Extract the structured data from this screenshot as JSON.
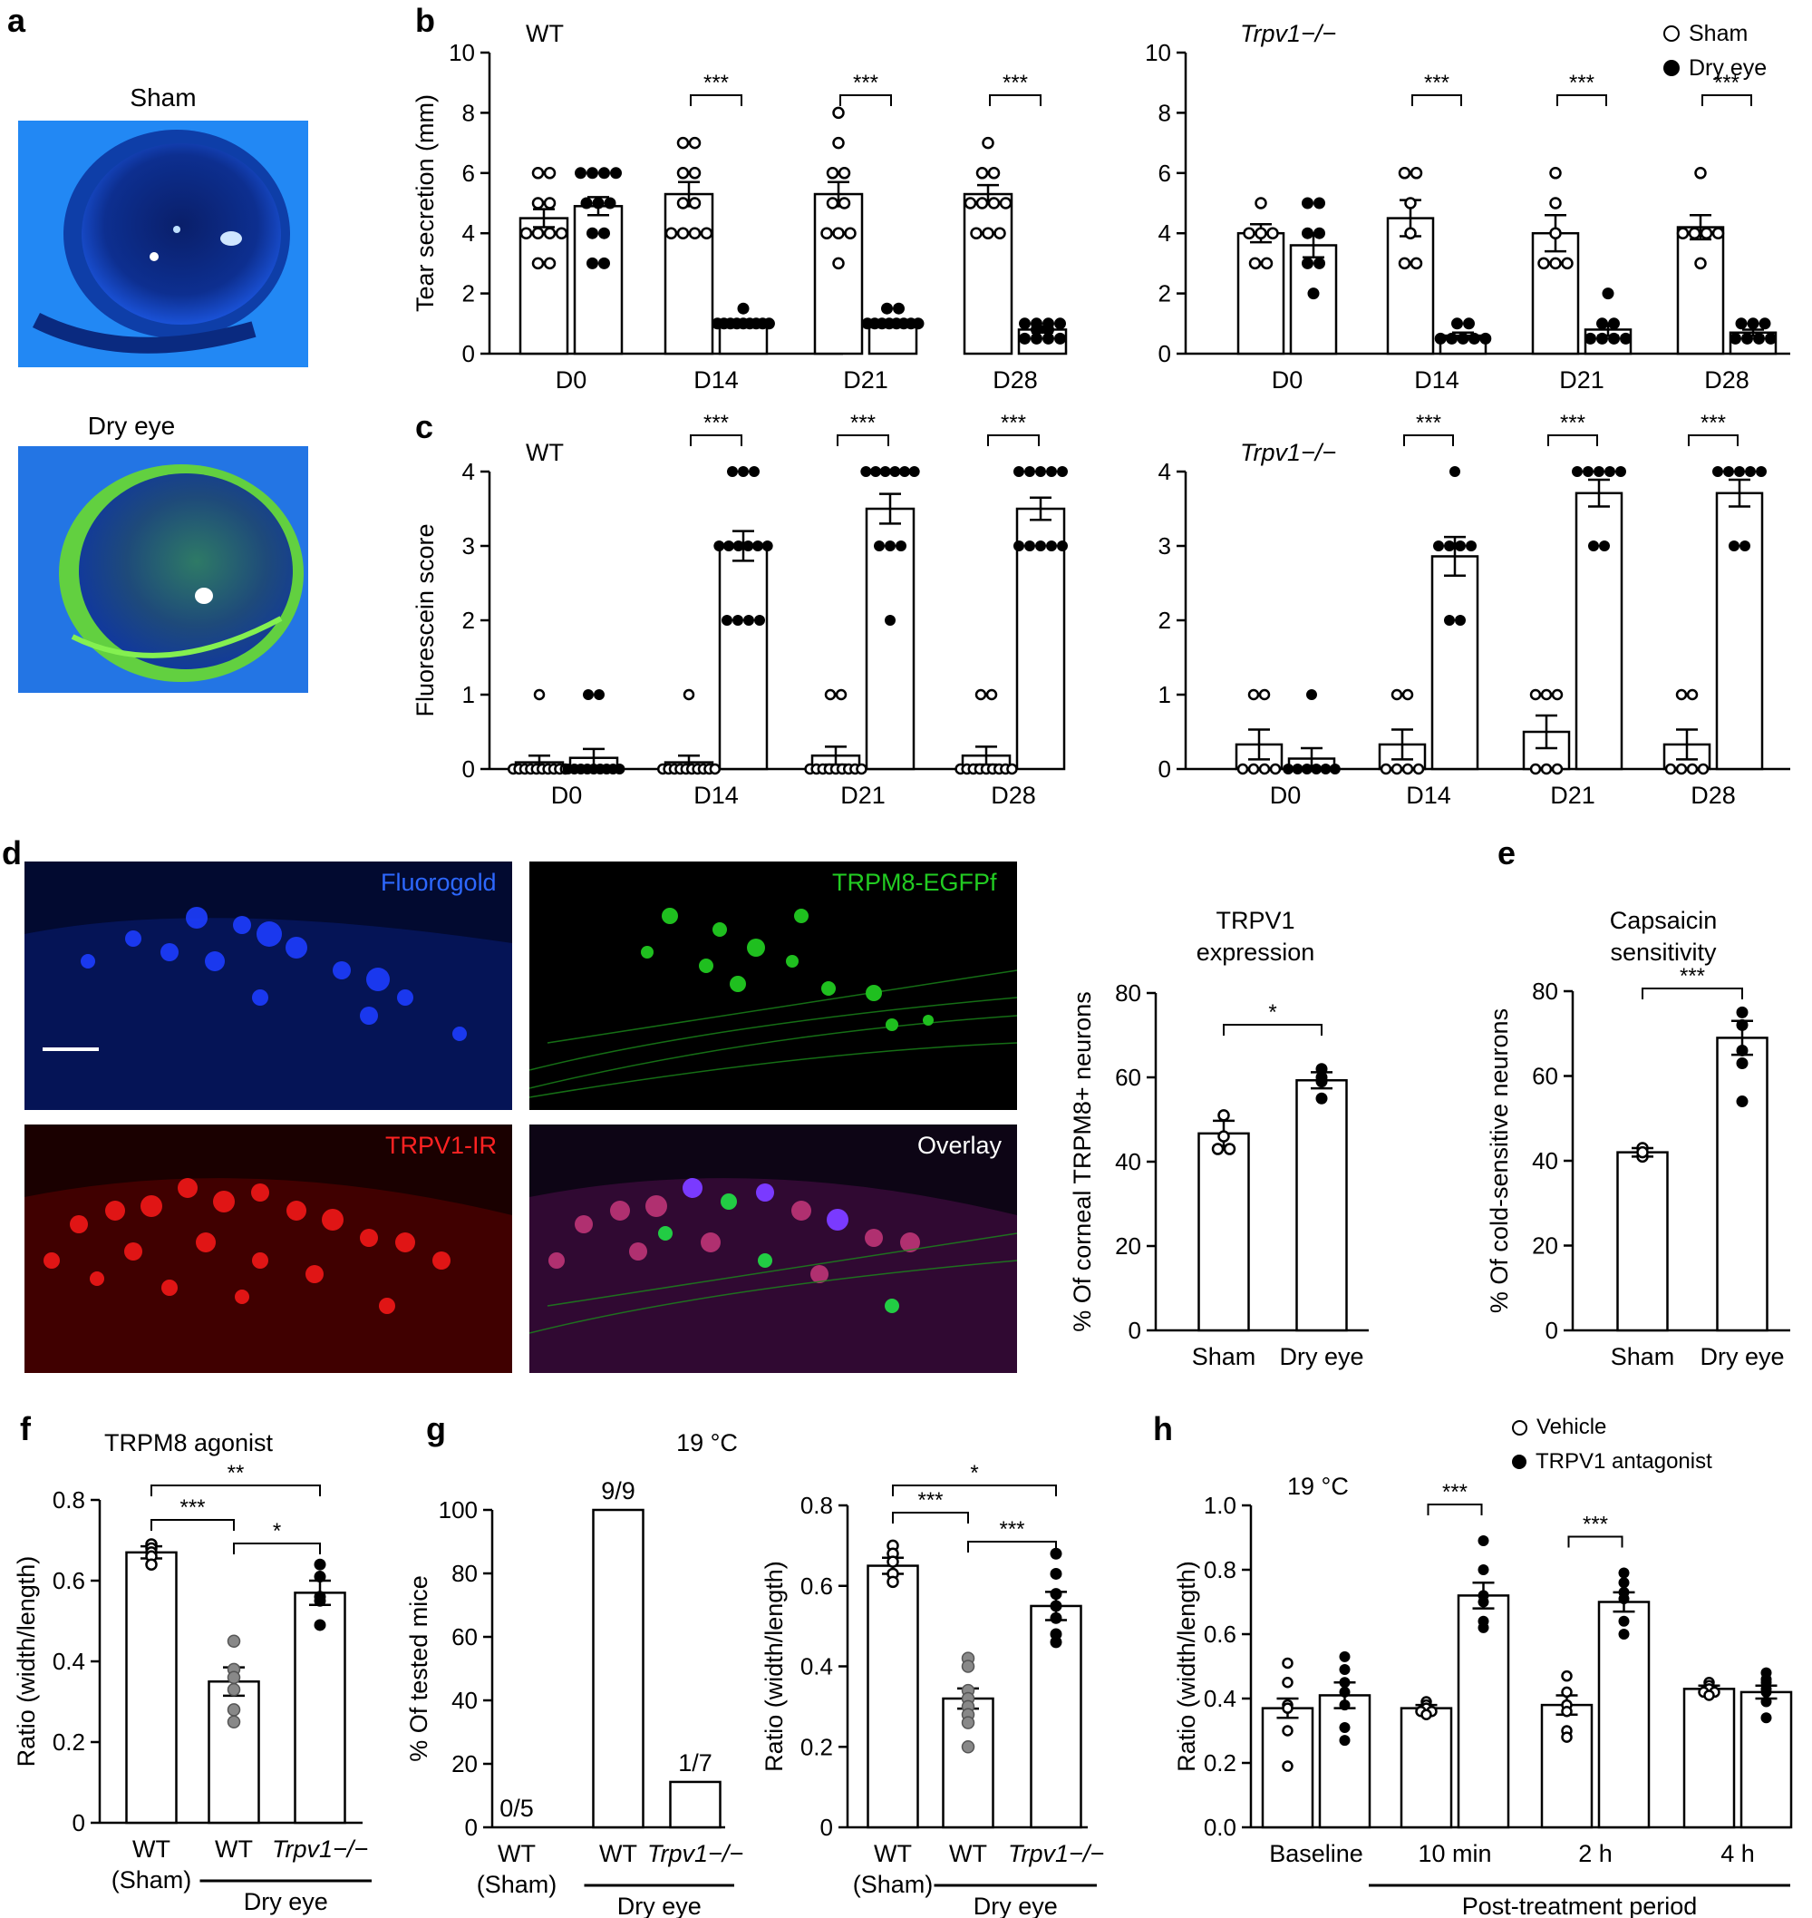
{
  "panel_letters": {
    "a": "a",
    "b": "b",
    "c": "c",
    "d": "d",
    "e": "e",
    "f": "f",
    "g": "g",
    "h": "h"
  },
  "panel_a": {
    "top_label": "Sham",
    "bottom_label": "Dry eye"
  },
  "panel_d": {
    "fluorogold": "Fluorogold",
    "trpm8": "TRPM8-EGFPf",
    "trpv1": "TRPV1-IR",
    "overlay": "Overlay"
  },
  "legend_bc": {
    "sham": "Sham",
    "dry": "Dry eye"
  },
  "legend_h": {
    "vehicle": "Vehicle",
    "antagonist": "TRPV1 antagonist"
  },
  "colors": {
    "sham_marker": "#ffffff",
    "dry_marker": "#000000",
    "wt_dry_marker": "#888888",
    "fluorogold": "#2255ff",
    "egfp": "#22cc22",
    "trpv1": "#ee1111",
    "overlay": "#ffffff"
  },
  "chart_data": [
    {
      "id": "b_wt",
      "type": "bar",
      "title": "WT",
      "ylabel": "Tear secretion (mm)",
      "ylim": [
        0,
        10
      ],
      "yticks": [
        0,
        2,
        4,
        6,
        8,
        10
      ],
      "categories": [
        "D0",
        "D14",
        "D21",
        "D28"
      ],
      "series": [
        {
          "name": "Sham",
          "values": [
            4.5,
            5.3,
            5.3,
            5.3
          ],
          "sem": [
            0.3,
            0.4,
            0.4,
            0.3
          ],
          "points": [
            [
              6,
              6,
              5,
              5,
              4,
              4,
              4,
              4,
              3,
              3
            ],
            [
              7,
              7,
              6,
              6,
              5,
              5,
              4,
              4,
              4,
              4
            ],
            [
              8,
              7,
              6,
              6,
              5,
              5,
              4,
              4,
              4,
              3
            ],
            [
              7,
              6,
              6,
              5,
              5,
              5,
              5,
              4,
              4,
              4
            ]
          ]
        },
        {
          "name": "Dry eye",
          "values": [
            4.9,
            1.0,
            1.0,
            0.8
          ],
          "sem": [
            0.3,
            0.1,
            0.1,
            0.1
          ],
          "points": [
            [
              6,
              6,
              6,
              6,
              5,
              5,
              5,
              4,
              4,
              3,
              3
            ],
            [
              1.5,
              1,
              1,
              1,
              1,
              1,
              1,
              1,
              1,
              1
            ],
            [
              1.5,
              1.5,
              1,
              1,
              1,
              1,
              1,
              1,
              1,
              1
            ],
            [
              1,
              1,
              1,
              1,
              0.8,
              0.8,
              0.5,
              0.5,
              0.5,
              0.5
            ]
          ]
        }
      ],
      "sig": [
        "",
        "***",
        "***",
        "***"
      ]
    },
    {
      "id": "b_ko",
      "type": "bar",
      "title": "Trpv1−/−",
      "ylabel": "",
      "ylim": [
        0,
        10
      ],
      "yticks": [
        0,
        2,
        4,
        6,
        8,
        10
      ],
      "categories": [
        "D0",
        "D14",
        "D21",
        "D28"
      ],
      "series": [
        {
          "name": "Sham",
          "values": [
            4.0,
            4.5,
            4.0,
            4.2
          ],
          "sem": [
            0.3,
            0.6,
            0.6,
            0.4
          ],
          "points": [
            [
              5,
              4,
              4,
              4,
              3,
              3
            ],
            [
              6,
              6,
              5,
              4,
              3,
              3
            ],
            [
              6,
              5,
              4,
              3,
              3,
              3
            ],
            [
              6,
              4,
              4,
              4,
              4,
              3
            ]
          ]
        },
        {
          "name": "Dry eye",
          "values": [
            3.6,
            0.6,
            0.8,
            0.7
          ],
          "sem": [
            0.4,
            0.1,
            0.2,
            0.1
          ],
          "points": [
            [
              5,
              5,
              4,
              4,
              3,
              3,
              2
            ],
            [
              1,
              1,
              0.5,
              0.5,
              0.5,
              0.5,
              0.5
            ],
            [
              2,
              1,
              1,
              0.5,
              0.5,
              0.5,
              0.5
            ],
            [
              1,
              1,
              1,
              0.5,
              0.5,
              0.5,
              0.5
            ]
          ]
        }
      ],
      "sig": [
        "",
        "***",
        "***",
        "***"
      ]
    },
    {
      "id": "c_wt",
      "type": "bar",
      "title": "WT",
      "ylabel": "Fluorescein score",
      "ylim": [
        0,
        4
      ],
      "yticks": [
        0,
        1,
        2,
        3,
        4
      ],
      "categories": [
        "D0",
        "D14",
        "D21",
        "D28"
      ],
      "series": [
        {
          "name": "Sham",
          "values": [
            0.09,
            0.09,
            0.18,
            0.18
          ],
          "sem": [
            0.09,
            0.09,
            0.12,
            0.12
          ],
          "points": [
            [
              1,
              0,
              0,
              0,
              0,
              0,
              0,
              0,
              0,
              0,
              0
            ],
            [
              1,
              0,
              0,
              0,
              0,
              0,
              0,
              0,
              0,
              0,
              0
            ],
            [
              1,
              1,
              0,
              0,
              0,
              0,
              0,
              0,
              0,
              0,
              0
            ],
            [
              1,
              1,
              0,
              0,
              0,
              0,
              0,
              0,
              0,
              0,
              0
            ]
          ]
        },
        {
          "name": "Dry eye",
          "values": [
            0.15,
            3.0,
            3.5,
            3.5
          ],
          "sem": [
            0.12,
            0.2,
            0.2,
            0.15
          ],
          "points": [
            [
              1,
              1,
              0,
              0,
              0,
              0,
              0,
              0,
              0,
              0,
              0
            ],
            [
              4,
              4,
              4,
              3,
              3,
              3,
              3,
              3,
              3,
              2,
              2,
              2,
              2
            ],
            [
              4,
              4,
              4,
              4,
              4,
              4,
              3,
              3,
              3,
              2
            ],
            [
              4,
              4,
              4,
              4,
              4,
              3,
              3,
              3,
              3,
              3
            ]
          ]
        }
      ],
      "sig": [
        "",
        "***",
        "***",
        "***"
      ]
    },
    {
      "id": "c_ko",
      "type": "bar",
      "title": "Trpv1−/−",
      "ylabel": "",
      "ylim": [
        0,
        4
      ],
      "yticks": [
        0,
        1,
        2,
        3,
        4
      ],
      "categories": [
        "D0",
        "D14",
        "D21",
        "D28"
      ],
      "series": [
        {
          "name": "Sham",
          "values": [
            0.33,
            0.33,
            0.5,
            0.33
          ],
          "sem": [
            0.2,
            0.2,
            0.22,
            0.2
          ],
          "points": [
            [
              1,
              1,
              0,
              0,
              0,
              0
            ],
            [
              1,
              1,
              0,
              0,
              0,
              0
            ],
            [
              1,
              1,
              1,
              0,
              0,
              0
            ],
            [
              1,
              1,
              0,
              0,
              0,
              0
            ]
          ]
        },
        {
          "name": "Dry eye",
          "values": [
            0.14,
            2.86,
            3.71,
            3.71
          ],
          "sem": [
            0.14,
            0.26,
            0.18,
            0.18
          ],
          "points": [
            [
              1,
              0,
              0,
              0,
              0,
              0,
              0
            ],
            [
              4,
              3,
              3,
              3,
              3,
              2,
              2
            ],
            [
              4,
              4,
              4,
              4,
              4,
              3,
              3
            ],
            [
              4,
              4,
              4,
              4,
              4,
              3,
              3
            ]
          ]
        }
      ],
      "sig": [
        "",
        "***",
        "***",
        "***"
      ]
    },
    {
      "id": "d_chart",
      "type": "bar",
      "title": "TRPV1\nexpression",
      "ylabel": "% Of corneal TRPM8+ neurons",
      "ylim": [
        0,
        80
      ],
      "yticks": [
        0,
        20,
        40,
        60,
        80
      ],
      "categories": [
        "Sham",
        "Dry eye"
      ],
      "values": [
        46.7,
        59.3
      ],
      "sem": [
        3.0,
        1.9
      ],
      "points": [
        [
          51,
          46,
          43,
          43
        ],
        [
          62,
          60,
          59,
          55
        ]
      ],
      "sig_pairs": [
        [
          0,
          1,
          "*"
        ]
      ]
    },
    {
      "id": "e_chart",
      "type": "bar",
      "title": "Capsaicin\nsensitivity",
      "ylabel": "% Of cold-sensitive neurons",
      "ylim": [
        0,
        80
      ],
      "yticks": [
        0,
        20,
        40,
        60,
        80
      ],
      "categories": [
        "Sham",
        "Dry eye"
      ],
      "values": [
        42,
        69
      ],
      "sem": [
        1.0,
        4.0
      ],
      "points": [
        [
          43,
          41,
          42
        ],
        [
          75,
          72,
          66,
          63,
          54
        ]
      ],
      "sig_pairs": [
        [
          0,
          1,
          "***"
        ]
      ]
    },
    {
      "id": "f_chart",
      "type": "bar",
      "title": "TRPM8 agonist",
      "ylabel": "Ratio (width/length)",
      "ylim": [
        0,
        0.8
      ],
      "yticks": [
        0,
        0.2,
        0.4,
        0.6,
        0.8
      ],
      "categories": [
        "WT\n(Sham)",
        "WT",
        "Trpv1−/−"
      ],
      "group_label": "Dry eye",
      "values": [
        0.67,
        0.35,
        0.57
      ],
      "sem": [
        0.015,
        0.035,
        0.03
      ],
      "points": [
        [
          0.69,
          0.68,
          0.67,
          0.66,
          0.64
        ],
        [
          0.45,
          0.38,
          0.36,
          0.33,
          0.28,
          0.25
        ],
        [
          0.64,
          0.61,
          0.56,
          0.55,
          0.49
        ]
      ],
      "sig_pairs": [
        [
          0,
          1,
          "***"
        ],
        [
          1,
          2,
          "*"
        ],
        [
          0,
          2,
          "**"
        ]
      ]
    },
    {
      "id": "g1_chart",
      "type": "bar",
      "title": "19 °C",
      "ylabel": "% Of tested mice",
      "ylim": [
        0,
        100
      ],
      "yticks": [
        0,
        20,
        40,
        60,
        80,
        100
      ],
      "categories": [
        "WT\n(Sham)",
        "WT",
        "Trpv1−/−"
      ],
      "group_label": "Dry eye",
      "values": [
        0,
        100,
        14.3
      ],
      "data_labels": [
        "0/5",
        "9/9",
        "1/7"
      ]
    },
    {
      "id": "g2_chart",
      "type": "bar",
      "title": "",
      "ylabel": "Ratio (width/length)",
      "ylim": [
        0,
        0.8
      ],
      "yticks": [
        0,
        0.2,
        0.4,
        0.6,
        0.8
      ],
      "categories": [
        "WT\n(Sham)",
        "WT",
        "Trpv1−/−"
      ],
      "group_label": "Dry eye",
      "values": [
        0.65,
        0.32,
        0.55
      ],
      "sem": [
        0.02,
        0.025,
        0.035
      ],
      "points": [
        [
          0.7,
          0.68,
          0.66,
          0.63,
          0.61
        ],
        [
          0.42,
          0.4,
          0.34,
          0.32,
          0.3,
          0.28,
          0.26,
          0.2
        ],
        [
          0.68,
          0.63,
          0.58,
          0.55,
          0.52,
          0.48,
          0.46
        ]
      ],
      "sig_pairs": [
        [
          0,
          1,
          "***"
        ],
        [
          1,
          2,
          "***"
        ],
        [
          0,
          2,
          "*"
        ]
      ]
    },
    {
      "id": "h_chart",
      "type": "bar",
      "title": "19 °C",
      "ylabel": "Ratio (width/length)",
      "ylim": [
        0,
        1.0
      ],
      "yticks": [
        0,
        0.2,
        0.4,
        0.6,
        0.8,
        1.0
      ],
      "categories": [
        "Baseline",
        "10 min",
        "2 h",
        "4 h"
      ],
      "group_label": "Post-treatment period",
      "series": [
        {
          "name": "Vehicle",
          "values": [
            0.37,
            0.37,
            0.38,
            0.43
          ],
          "sem": [
            0.03,
            0.01,
            0.03,
            0.01
          ],
          "points": [
            [
              0.51,
              0.45,
              0.38,
              0.37,
              0.3,
              0.19
            ],
            [
              0.39,
              0.38,
              0.37,
              0.36,
              0.36,
              0.35
            ],
            [
              0.47,
              0.42,
              0.38,
              0.36,
              0.3,
              0.28
            ],
            [
              0.45,
              0.44,
              0.43,
              0.42,
              0.42,
              0.41
            ]
          ]
        },
        {
          "name": "TRPV1 antagonist",
          "values": [
            0.41,
            0.72,
            0.7,
            0.42
          ],
          "sem": [
            0.04,
            0.04,
            0.03,
            0.02
          ],
          "points": [
            [
              0.53,
              0.49,
              0.45,
              0.42,
              0.38,
              0.31,
              0.27
            ],
            [
              0.89,
              0.8,
              0.72,
              0.7,
              0.64,
              0.62
            ],
            [
              0.79,
              0.76,
              0.73,
              0.71,
              0.64,
              0.6
            ],
            [
              0.48,
              0.46,
              0.45,
              0.43,
              0.42,
              0.39,
              0.34
            ]
          ]
        }
      ],
      "sig": [
        "",
        "***",
        "***",
        ""
      ]
    }
  ]
}
